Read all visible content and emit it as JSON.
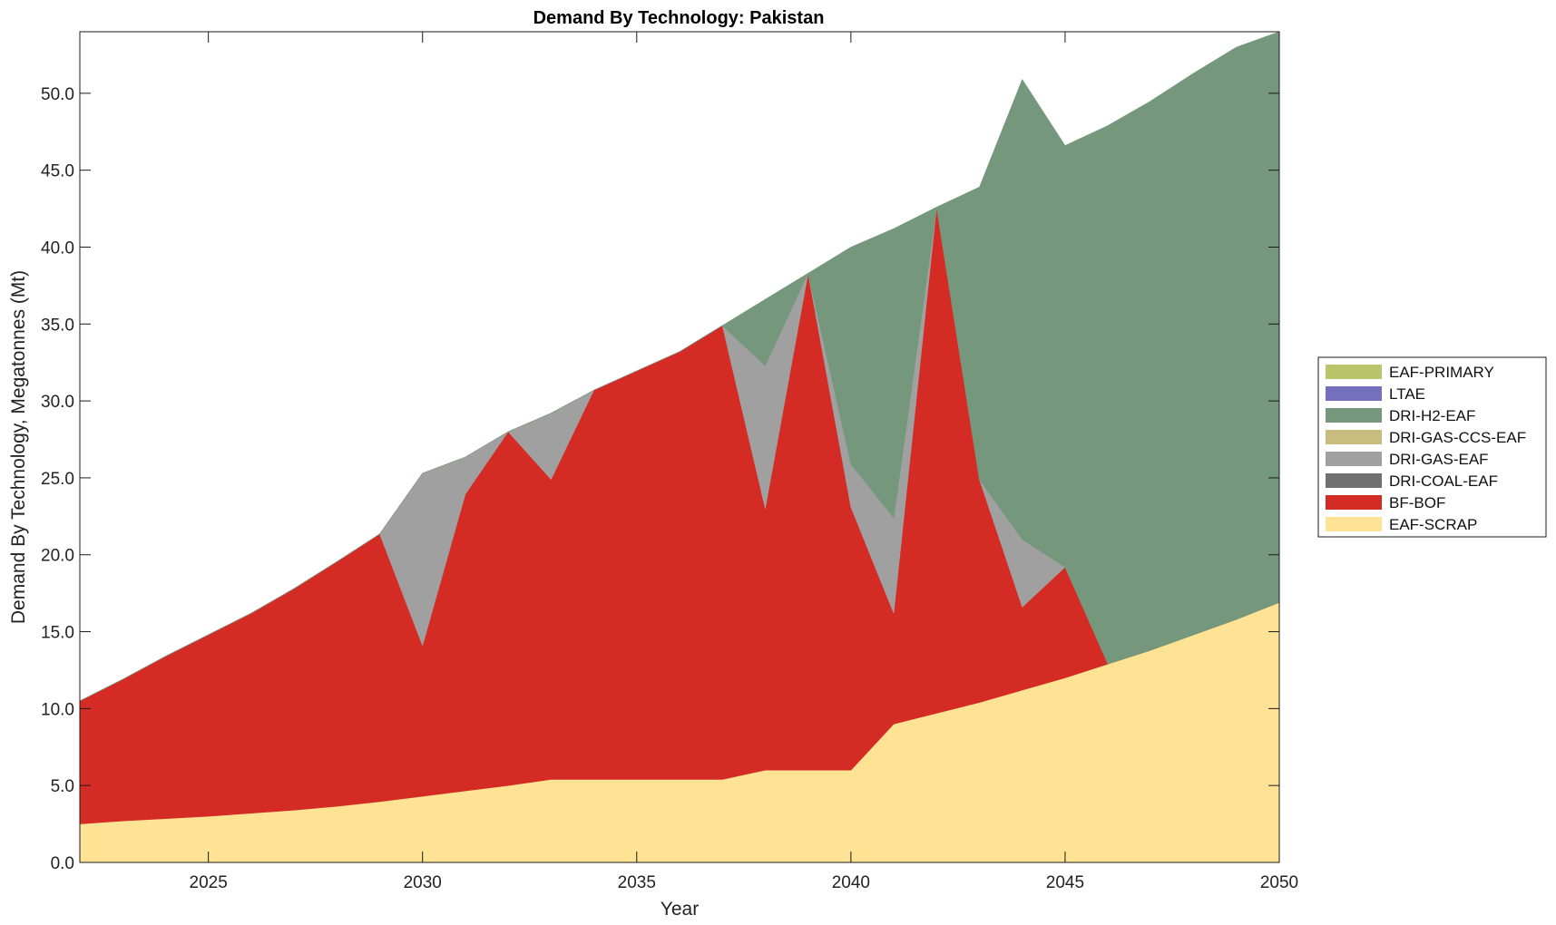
{
  "chart_data": {
    "type": "area",
    "stacked": true,
    "title": "Demand By Technology: Pakistan",
    "xlabel": "Year",
    "ylabel": "Demand By Technology, Megatonnes (Mt)",
    "xlim": [
      2022,
      2050
    ],
    "ylim": [
      0,
      54
    ],
    "xticks": [
      2025,
      2030,
      2035,
      2040,
      2045,
      2050
    ],
    "xtick_labels": [
      "2025",
      "2030",
      "2035",
      "2040",
      "2045",
      "2050"
    ],
    "yticks": [
      0,
      5,
      10,
      15,
      20,
      25,
      30,
      35,
      40,
      45,
      50
    ],
    "ytick_labels": [
      "0.0",
      "5.0",
      "10.0",
      "15.0",
      "20.0",
      "25.0",
      "30.0",
      "35.0",
      "40.0",
      "45.0",
      "50.0"
    ],
    "legend_position": "right",
    "x": [
      2022,
      2023,
      2024,
      2025,
      2026,
      2027,
      2028,
      2029,
      2030,
      2031,
      2032,
      2033,
      2034,
      2035,
      2036,
      2037,
      2038,
      2039,
      2040,
      2041,
      2042,
      2043,
      2044,
      2045,
      2046,
      2047,
      2048,
      2049,
      2050
    ],
    "series": [
      {
        "name": "EAF-SCRAP",
        "color": "#fde393",
        "values": [
          2.5,
          2.7,
          2.85,
          3.0,
          3.2,
          3.4,
          3.65,
          3.95,
          4.3,
          4.65,
          5.0,
          5.4,
          5.4,
          5.4,
          5.4,
          5.4,
          6.0,
          6.0,
          6.0,
          9.0,
          9.7,
          10.4,
          11.2,
          12.0,
          12.9,
          13.8,
          14.8,
          15.8,
          16.9
        ]
      },
      {
        "name": "BF-BOF",
        "color": "#d42b25",
        "values": [
          8.0,
          9.2,
          10.55,
          11.8,
          13.0,
          14.4,
          15.9,
          17.4,
          9.8,
          19.3,
          23.0,
          19.5,
          25.3,
          26.55,
          27.8,
          29.5,
          17.0,
          32.3,
          17.1,
          7.2,
          32.9,
          14.5,
          5.4,
          7.2,
          0.0,
          0.0,
          0.0,
          0.0,
          0.0
        ]
      },
      {
        "name": "DRI-COAL-EAF",
        "color": "#707070",
        "values": [
          0,
          0,
          0,
          0,
          0,
          0,
          0,
          0,
          0,
          0,
          0,
          0,
          0,
          0,
          0,
          0,
          0,
          0,
          0,
          0,
          0,
          0,
          0,
          0,
          0,
          0,
          0,
          0,
          0
        ]
      },
      {
        "name": "DRI-GAS-EAF",
        "color": "#a0a0a0",
        "values": [
          0,
          0,
          0,
          0,
          0,
          0,
          0,
          0,
          11.2,
          2.4,
          0.0,
          4.3,
          0.0,
          0.0,
          0.0,
          0.0,
          9.3,
          0.0,
          2.8,
          6.2,
          0.0,
          0.0,
          4.4,
          0.0,
          0.0,
          0.0,
          0.0,
          0.0,
          0.0
        ]
      },
      {
        "name": "DRI-GAS-CCS-EAF",
        "color": "#c8bd7e",
        "values": [
          0,
          0,
          0,
          0,
          0,
          0,
          0,
          0,
          0,
          0,
          0,
          0,
          0,
          0,
          0,
          0,
          0,
          0,
          0,
          0,
          0,
          0,
          0,
          0,
          0,
          0,
          0,
          0,
          0
        ]
      },
      {
        "name": "DRI-H2-EAF",
        "color": "#75977c",
        "values": [
          0,
          0,
          0,
          0,
          0,
          0,
          0,
          0,
          0,
          0,
          0,
          0,
          0,
          0,
          0,
          0,
          4.3,
          0.0,
          14.1,
          18.8,
          0.0,
          19.0,
          29.9,
          27.4,
          35.0,
          35.7,
          36.5,
          37.2,
          37.1
        ]
      },
      {
        "name": "LTAE",
        "color": "#7570be",
        "values": [
          0,
          0,
          0,
          0,
          0,
          0,
          0,
          0,
          0,
          0,
          0,
          0,
          0,
          0,
          0,
          0,
          0,
          0,
          0,
          0,
          0,
          0,
          0,
          0,
          0,
          0,
          0,
          0,
          0
        ]
      },
      {
        "name": "EAF-PRIMARY",
        "color": "#bac46a",
        "values": [
          0,
          0,
          0,
          0,
          0,
          0,
          0,
          0,
          0,
          0,
          0,
          0,
          0,
          0,
          0,
          0,
          0,
          0,
          0,
          0,
          0,
          0,
          0,
          0,
          0,
          0,
          0,
          0,
          0
        ]
      }
    ],
    "legend_order": [
      "EAF-PRIMARY",
      "LTAE",
      "DRI-H2-EAF",
      "DRI-GAS-CCS-EAF",
      "DRI-GAS-EAF",
      "DRI-COAL-EAF",
      "BF-BOF",
      "EAF-SCRAP"
    ]
  }
}
